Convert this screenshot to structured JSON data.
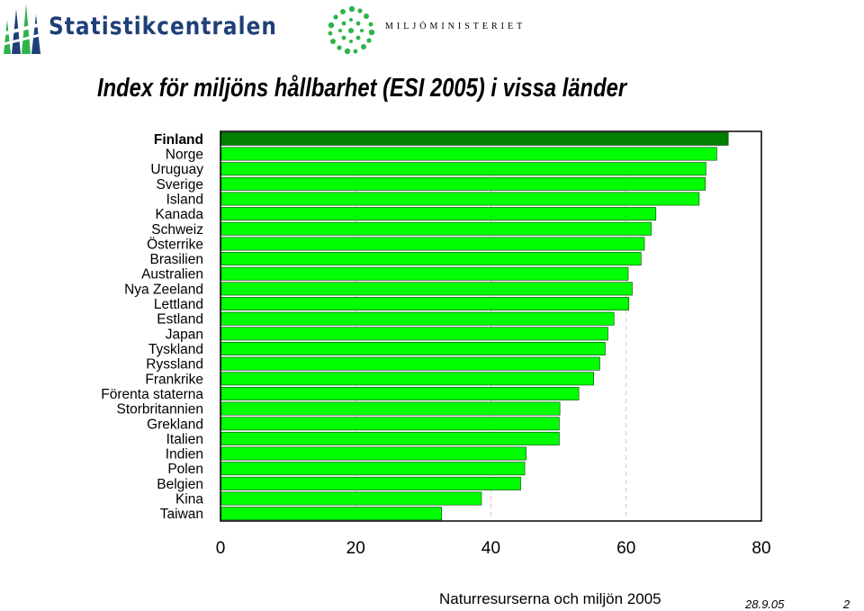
{
  "header": {
    "logo_left_text": "Statistikcentralen",
    "logo_right_text": "MILJÖMINISTERIET"
  },
  "colors": {
    "bar": "#00ff00",
    "bar_highlight": "#007f00",
    "bar_border": "#004000",
    "logo_blue": "#1f3f78",
    "logo_green": "#2eb34a"
  },
  "chart_data": {
    "type": "bar",
    "orientation": "horizontal",
    "title": "Index för miljöns hållbarhet (ESI 2005) i vissa länder",
    "categories": [
      "Finland",
      "Norge",
      "Uruguay",
      "Sverige",
      "Island",
      "Kanada",
      "Schweiz",
      "Österrike",
      "Brasilien",
      "Australien",
      "Nya Zeeland",
      "Lettland",
      "Estland",
      "Japan",
      "Tyskland",
      "Ryssland",
      "Frankrike",
      "Förenta staterna",
      "Storbritannien",
      "Grekland",
      "Italien",
      "Indien",
      "Polen",
      "Belgien",
      "Kina",
      "Taiwan"
    ],
    "values": [
      75.1,
      73.4,
      71.8,
      71.7,
      70.8,
      64.4,
      63.7,
      62.7,
      62.2,
      60.3,
      60.9,
      60.4,
      58.2,
      57.3,
      56.9,
      56.1,
      55.2,
      53.0,
      50.2,
      50.1,
      50.1,
      45.2,
      45.0,
      44.4,
      38.6,
      32.7
    ],
    "highlight": "Finland",
    "xlim": [
      0,
      80
    ],
    "xticks": [
      "0",
      "20",
      "40",
      "60",
      "80"
    ],
    "xlabel": "",
    "ylabel": "",
    "grid": "vertical dashed"
  },
  "footer": {
    "source": "Naturresurserna och miljön 2005",
    "date": "28.9.05",
    "page": "2"
  }
}
